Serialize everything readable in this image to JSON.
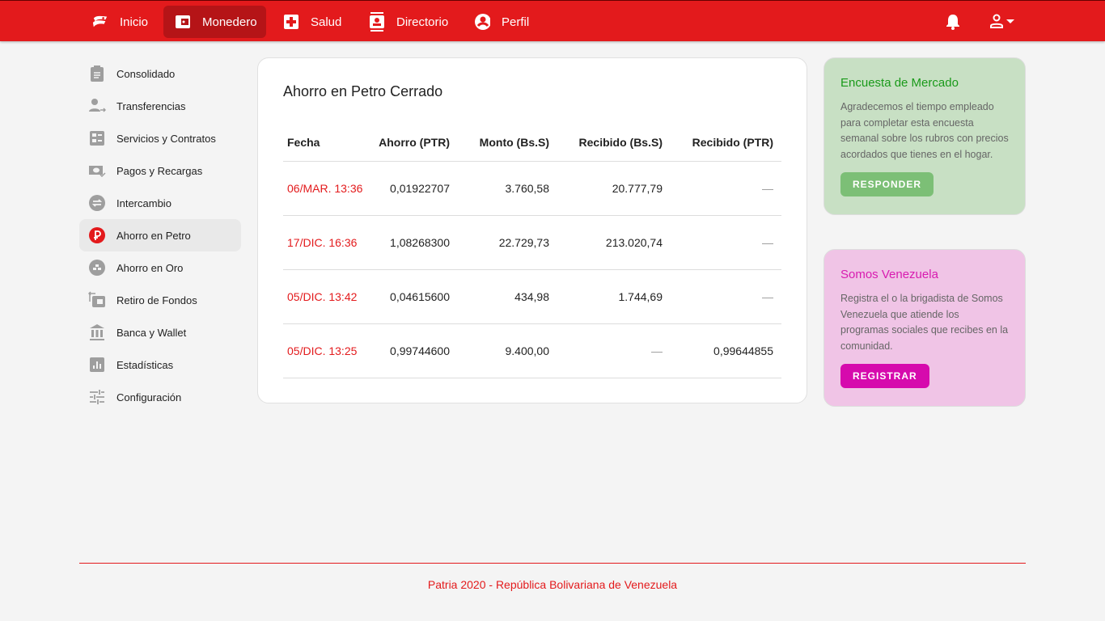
{
  "nav": {
    "items": [
      {
        "label": "Inicio",
        "icon": "flag-icon"
      },
      {
        "label": "Monedero",
        "icon": "wallet-icon",
        "active": true
      },
      {
        "label": "Salud",
        "icon": "medical-cross-icon"
      },
      {
        "label": "Directorio",
        "icon": "contacts-icon"
      },
      {
        "label": "Perfil",
        "icon": "account-circle-icon"
      }
    ]
  },
  "sidebar": {
    "items": [
      {
        "label": "Consolidado"
      },
      {
        "label": "Transferencias"
      },
      {
        "label": "Servicios y Contratos"
      },
      {
        "label": "Pagos y Recargas"
      },
      {
        "label": "Intercambio"
      },
      {
        "label": "Ahorro en Petro",
        "active": true
      },
      {
        "label": "Ahorro en Oro"
      },
      {
        "label": "Retiro de Fondos"
      },
      {
        "label": "Banca y Wallet"
      },
      {
        "label": "Estadísticas"
      },
      {
        "label": "Configuración"
      }
    ]
  },
  "main": {
    "title": "Ahorro en Petro Cerrado",
    "columns": [
      "Fecha",
      "Ahorro (PTR)",
      "Monto (Bs.S)",
      "Recibido (Bs.S)",
      "Recibido (PTR)"
    ],
    "rows": [
      [
        "06/MAR. 13:36",
        "0,01922707",
        "3.760,58",
        "20.777,79",
        "—"
      ],
      [
        "17/DIC. 16:36",
        "1,08268300",
        "22.729,73",
        "213.020,74",
        "—"
      ],
      [
        "05/DIC. 13:42",
        "0,04615600",
        "434,98",
        "1.744,69",
        "—"
      ],
      [
        "05/DIC. 13:25",
        "0,99744600",
        "9.400,00",
        "—",
        "0,99644855"
      ]
    ]
  },
  "promos": [
    {
      "title": "Encuesta de Mercado",
      "text": "Agradecemos el tiempo empleado para completar esta encuesta semanal sobre los rubros con precios acordados que tienes en el hogar.",
      "button": "RESPONDER",
      "bg": "#c8e0c4",
      "accent": "#1a9a1a",
      "btn": "#7cbf76"
    },
    {
      "title": "Somos Venezuela",
      "text": "Registra el o la brigadista de Somos Venezuela que atiende los programas sociales que recibes en la comunidad.",
      "button": "REGISTRAR",
      "bg": "#f0c4e6",
      "accent": "#d81bb0",
      "btn": "#d60aad"
    }
  ],
  "footer": "Patria 2020 - República Bolivariana de Venezuela",
  "colors": {
    "brand": "#e31a1c"
  }
}
